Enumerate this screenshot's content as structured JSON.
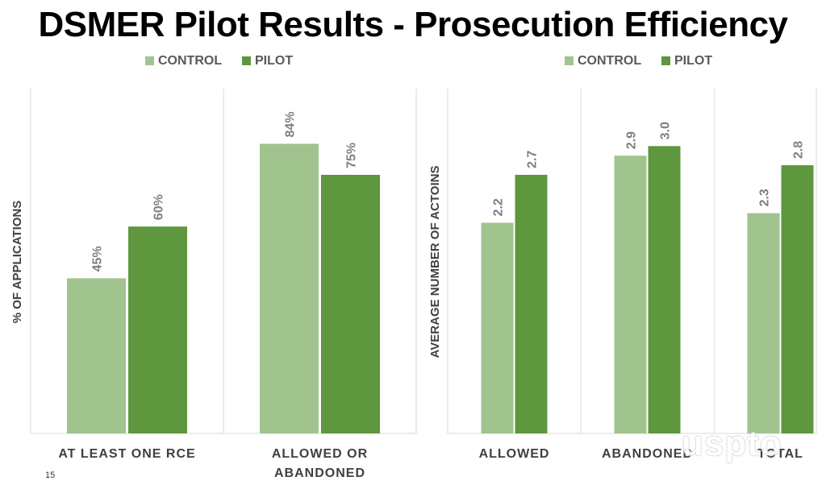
{
  "title": "DSMER Pilot Results - Prosecution Efficiency",
  "page_number": "15",
  "watermark": "uspto",
  "colors": {
    "control": "#a1c48f",
    "pilot": "#5e973e",
    "label": "#7f7f7f",
    "axis": "#404040",
    "grid": "#d9d9d9"
  },
  "chart_data": [
    {
      "type": "bar",
      "ylabel": "% OF APPLICATIONS",
      "xlabel": "",
      "categories": [
        [
          "AT LEAST ONE RCE"
        ],
        [
          "ALLOWED OR",
          "ABANDONED"
        ]
      ],
      "series": [
        {
          "name": "CONTROL",
          "values": [
            45,
            84
          ],
          "labels": [
            "45%",
            "84%"
          ]
        },
        {
          "name": "PILOT",
          "values": [
            60,
            75
          ],
          "labels": [
            "60%",
            "75%"
          ]
        }
      ],
      "ylim": [
        0,
        100
      ],
      "legend": "top",
      "grid": false
    },
    {
      "type": "bar",
      "ylabel": "AVERAGE NUMBER OF ACTOINS",
      "xlabel": "",
      "categories": [
        [
          "ALLOWED"
        ],
        [
          "ABANDONED"
        ],
        [
          "TOTAL"
        ]
      ],
      "series": [
        {
          "name": "CONTROL",
          "values": [
            2.2,
            2.9,
            2.3
          ],
          "labels": [
            "2.2",
            "2.9",
            "2.3"
          ]
        },
        {
          "name": "PILOT",
          "values": [
            2.7,
            3.0,
            2.8
          ],
          "labels": [
            "2.7",
            "3.0",
            "2.8"
          ]
        }
      ],
      "ylim": [
        0,
        3.6
      ],
      "legend": "top",
      "grid": false
    }
  ]
}
